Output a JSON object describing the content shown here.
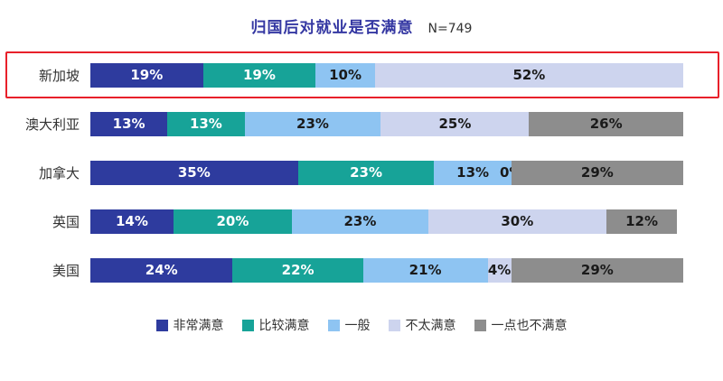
{
  "header": {
    "title": "归国后对就业是否满意",
    "n_label": "N=749"
  },
  "chart_data": {
    "type": "bar",
    "stacked": true,
    "orientation": "horizontal",
    "title": "归国后对就业是否满意",
    "sample_size": "N=749",
    "categories": [
      "新加坡",
      "澳大利亚",
      "加拿大",
      "英国",
      "美国"
    ],
    "series": [
      {
        "name": "非常满意",
        "color": "#2e3b9e",
        "label_color": "#ffffff",
        "values": [
          19,
          13,
          35,
          14,
          24
        ]
      },
      {
        "name": "比较满意",
        "color": "#17a398",
        "label_color": "#ffffff",
        "values": [
          19,
          13,
          23,
          20,
          22
        ]
      },
      {
        "name": "一般",
        "color": "#8ec4f2",
        "label_color": "#1a1a1a",
        "values": [
          10,
          23,
          13,
          23,
          21
        ]
      },
      {
        "name": "不太满意",
        "color": "#cdd4ee",
        "label_color": "#1a1a1a",
        "values": [
          52,
          25,
          0,
          30,
          4
        ]
      },
      {
        "name": "一点也不满意",
        "color": "#8d8d8d",
        "label_color": "#1a1a1a",
        "values": [
          0,
          26,
          29,
          12,
          29
        ]
      }
    ],
    "cell_labels": [
      [
        "19%",
        "19%",
        "10%",
        "52%",
        ""
      ],
      [
        "13%",
        "13%",
        "23%",
        "25%",
        "26%"
      ],
      [
        "35%",
        "23%",
        "13%",
        "0%",
        "29%"
      ],
      [
        "14%",
        "20%",
        "23%",
        "30%",
        "12%"
      ],
      [
        "24%",
        "22%",
        "21%",
        "4%",
        "29%"
      ]
    ],
    "xlim": [
      0,
      100
    ],
    "grid": false,
    "legend_position": "bottom",
    "highlight_category": "新加坡",
    "highlight_color": "#e8202a"
  }
}
